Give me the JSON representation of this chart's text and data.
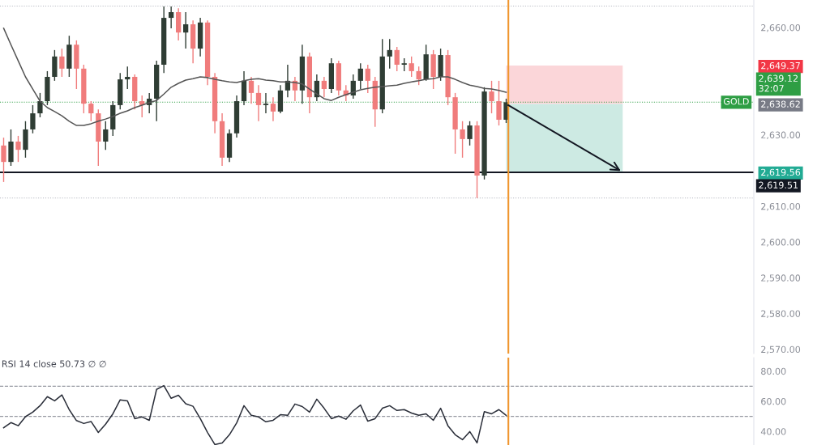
{
  "chart_data": [
    {
      "type": "candlestick",
      "categories": [
        null,
        null,
        null,
        null,
        null,
        null,
        null,
        null,
        null,
        null,
        null,
        null,
        null,
        null,
        null,
        null,
        null,
        null,
        null,
        null,
        null,
        null,
        null,
        null,
        null,
        null,
        null,
        null,
        null,
        null,
        null,
        null,
        null,
        null,
        null,
        null,
        null,
        null,
        null,
        null,
        null,
        null,
        null,
        null,
        null,
        null,
        null,
        null,
        null,
        null,
        null,
        null,
        null,
        null,
        null,
        null,
        null,
        null,
        null,
        null,
        null,
        null,
        null,
        null,
        null,
        null,
        null,
        null,
        null,
        null
      ],
      "ohlc": [
        [
          2627.0,
          2629.2,
          2616.8,
          2622.4
        ],
        [
          2622.4,
          2631.5,
          2621.3,
          2628.1
        ],
        [
          2628.1,
          2629.7,
          2622.4,
          2625.8
        ],
        [
          2625.8,
          2633.8,
          2623.6,
          2631.5
        ],
        [
          2631.5,
          2638.3,
          2630.4,
          2636.0
        ],
        [
          2636.0,
          2641.7,
          2634.9,
          2639.4
        ],
        [
          2639.4,
          2647.8,
          2638.3,
          2646.2
        ],
        [
          2646.2,
          2653.7,
          2645.1,
          2651.9
        ],
        [
          2651.9,
          2654.1,
          2646.2,
          2648.5
        ],
        [
          2648.5,
          2657.7,
          2646.2,
          2655.2
        ],
        [
          2655.2,
          2656.4,
          2642.8,
          2648.5
        ],
        [
          2648.5,
          2649.6,
          2636.0,
          2638.7
        ],
        [
          2638.7,
          2639.4,
          2633.8,
          2636.0
        ],
        [
          2636.0,
          2637.1,
          2621.3,
          2628.1
        ],
        [
          2628.1,
          2633.8,
          2625.8,
          2631.5
        ],
        [
          2631.5,
          2639.4,
          2629.7,
          2638.3
        ],
        [
          2638.3,
          2647.3,
          2637.1,
          2645.5
        ],
        [
          2645.5,
          2649.1,
          2642.8,
          2646.2
        ],
        [
          2646.2,
          2646.9,
          2637.1,
          2639.4
        ],
        [
          2639.4,
          2641.0,
          2634.9,
          2638.3
        ],
        [
          2638.3,
          2641.7,
          2636.0,
          2640.1
        ],
        [
          2640.1,
          2650.7,
          2633.8,
          2649.6
        ],
        [
          2649.6,
          2665.9,
          2647.3,
          2662.7
        ],
        [
          2662.7,
          2665.9,
          2659.8,
          2664.3
        ],
        [
          2664.3,
          2665.4,
          2656.4,
          2658.6
        ],
        [
          2658.6,
          2664.3,
          2654.1,
          2660.9
        ],
        [
          2660.9,
          2662.0,
          2650.0,
          2654.1
        ],
        [
          2654.1,
          2662.7,
          2651.9,
          2661.4
        ],
        [
          2661.4,
          2662.0,
          2643.9,
          2646.2
        ],
        [
          2646.2,
          2647.3,
          2630.4,
          2633.8
        ],
        [
          2633.8,
          2636.0,
          2621.3,
          2623.6
        ],
        [
          2623.6,
          2631.5,
          2622.4,
          2630.4
        ],
        [
          2630.4,
          2641.0,
          2629.2,
          2639.4
        ],
        [
          2639.4,
          2647.8,
          2638.3,
          2645.1
        ],
        [
          2645.1,
          2646.2,
          2638.7,
          2641.7
        ],
        [
          2641.7,
          2643.9,
          2633.8,
          2638.3
        ],
        [
          2638.3,
          2641.7,
          2636.0,
          2638.7
        ],
        [
          2638.7,
          2640.5,
          2633.8,
          2636.5
        ],
        [
          2636.5,
          2643.9,
          2636.0,
          2642.4
        ],
        [
          2642.4,
          2649.6,
          2640.5,
          2645.1
        ],
        [
          2645.1,
          2646.2,
          2639.4,
          2642.4
        ],
        [
          2642.4,
          2655.2,
          2638.7,
          2651.9
        ],
        [
          2651.9,
          2653.0,
          2636.0,
          2640.5
        ],
        [
          2640.5,
          2646.9,
          2639.4,
          2645.1
        ],
        [
          2645.1,
          2646.2,
          2640.5,
          2642.8
        ],
        [
          2642.8,
          2651.4,
          2641.7,
          2650.0
        ],
        [
          2650.0,
          2650.7,
          2641.0,
          2642.4
        ],
        [
          2642.4,
          2643.9,
          2639.4,
          2641.0
        ],
        [
          2641.0,
          2646.9,
          2640.1,
          2645.1
        ],
        [
          2645.1,
          2650.0,
          2642.8,
          2648.5
        ],
        [
          2648.5,
          2649.6,
          2641.7,
          2645.1
        ],
        [
          2645.1,
          2646.2,
          2632.2,
          2637.1
        ],
        [
          2637.1,
          2656.8,
          2636.0,
          2651.9
        ],
        [
          2651.9,
          2656.8,
          2648.5,
          2653.7
        ],
        [
          2653.7,
          2654.6,
          2647.8,
          2649.6
        ],
        [
          2649.6,
          2651.4,
          2647.8,
          2650.0
        ],
        [
          2650.0,
          2651.9,
          2646.2,
          2647.8
        ],
        [
          2647.8,
          2649.1,
          2643.9,
          2645.5
        ],
        [
          2645.5,
          2655.2,
          2645.1,
          2652.5
        ],
        [
          2652.5,
          2653.7,
          2642.8,
          2646.2
        ],
        [
          2646.2,
          2654.1,
          2645.1,
          2652.3
        ],
        [
          2652.3,
          2653.7,
          2638.3,
          2640.5
        ],
        [
          2640.5,
          2641.7,
          2624.7,
          2631.5
        ],
        [
          2631.5,
          2633.8,
          2623.6,
          2628.8
        ],
        [
          2628.8,
          2633.8,
          2627.0,
          2632.6
        ],
        [
          2632.6,
          2633.8,
          2612.3,
          2618.6
        ],
        [
          2618.6,
          2643.3,
          2617.5,
          2642.1
        ],
        [
          2642.1,
          2645.1,
          2636.0,
          2639.4
        ],
        [
          2639.4,
          2645.1,
          2632.6,
          2634.2
        ],
        [
          2634.2,
          2640.1,
          2633.3,
          2639.1
        ]
      ],
      "colors": [
        "#f07c7c",
        "#2f3d34",
        "#f07c7c",
        "#2f3d34",
        "#2f3d34",
        "#2f3d34",
        "#2f3d34",
        "#2f3d34",
        "#f07c7c",
        "#2f3d34",
        "#f07c7c",
        "#f07c7c",
        "#f07c7c",
        "#f07c7c",
        "#2f3d34",
        "#2f3d34",
        "#2f3d34",
        "#2f3d34",
        "#f07c7c",
        "#f07c7c",
        "#2f3d34",
        "#2f3d34",
        "#2f3d34",
        "#2f3d34",
        "#f07c7c",
        "#2f3d34",
        "#f07c7c",
        "#2f3d34",
        "#f07c7c",
        "#f07c7c",
        "#f07c7c",
        "#2f3d34",
        "#2f3d34",
        "#2f3d34",
        "#f07c7c",
        "#f07c7c",
        "#2f3d34",
        "#f07c7c",
        "#2f3d34",
        "#2f3d34",
        "#f07c7c",
        "#2f3d34",
        "#f07c7c",
        "#2f3d34",
        "#f07c7c",
        "#2f3d34",
        "#f07c7c",
        "#f07c7c",
        "#2f3d34",
        "#2f3d34",
        "#f07c7c",
        "#f07c7c",
        "#2f3d34",
        "#2f3d34",
        "#f07c7c",
        "#2f3d34",
        "#f07c7c",
        "#f07c7c",
        "#2f3d34",
        "#f07c7c",
        "#2f3d34",
        "#f07c7c",
        "#f07c7c",
        "#f07c7c",
        "#2f3d34",
        "#f07c7c",
        "#2f3d34",
        "#f07c7c",
        "#f07c7c",
        "#2f3d34"
      ],
      "series": [
        {
          "type": "line",
          "color": "#555555",
          "values": [
            2659.8,
            2655.2,
            2650.7,
            2646.2,
            2642.8,
            2639.4,
            2637.6,
            2636.5,
            2635.3,
            2633.8,
            2632.6,
            2632.6,
            2633.1,
            2633.8,
            2634.4,
            2635.1,
            2636.0,
            2636.7,
            2637.6,
            2638.3,
            2639.0,
            2639.6,
            2641.4,
            2643.3,
            2644.4,
            2645.3,
            2645.7,
            2646.2,
            2646.0,
            2645.5,
            2645.1,
            2644.8,
            2644.6,
            2645.1,
            2645.5,
            2645.7,
            2645.3,
            2645.1,
            2644.8,
            2644.8,
            2644.6,
            2644.2,
            2642.8,
            2641.4,
            2640.1,
            2639.6,
            2640.5,
            2641.2,
            2641.9,
            2642.6,
            2643.0,
            2643.3,
            2643.5,
            2643.7,
            2643.9,
            2644.4,
            2644.8,
            2645.1,
            2645.5,
            2645.7,
            2646.2,
            2646.2,
            2645.5,
            2644.6,
            2643.9,
            2643.5,
            2643.0,
            2642.8,
            2642.4,
            2641.9
          ]
        }
      ],
      "ylim": [
        2568.8,
        2667.7
      ],
      "yticks": [
        {
          "value": 2660,
          "label": "2,660.00"
        },
        {
          "value": 2649.37,
          "label": "2,649.37"
        },
        {
          "value": 2638.62,
          "label": "2,638.62"
        },
        {
          "value": 2630,
          "label": "2,630.00"
        },
        {
          "value": 2619.56,
          "label": "2,619.56"
        },
        {
          "value": 2610,
          "label": "2,610.00"
        },
        {
          "value": 2600,
          "label": "2,600.00"
        },
        {
          "value": 2590,
          "label": "2,590.00"
        },
        {
          "value": 2580,
          "label": "2,580.00"
        },
        {
          "value": 2570,
          "label": "2,570.00"
        }
      ],
      "ref_lines": [
        {
          "axis": "y",
          "value": 2666.0,
          "color": "#b2b5be",
          "line_style": "dotted"
        },
        {
          "axis": "y",
          "value": 2612.3,
          "color": "#b2b5be",
          "line_style": "dotted"
        },
        {
          "axis": "y",
          "value": 2639.12,
          "label": "2,639.12",
          "color": "#2e9e44",
          "line_style": "dotted"
        },
        {
          "axis": "y",
          "value": 2619.51,
          "label": "2,619.51",
          "color": "#131722",
          "line_style": "solid"
        }
      ],
      "annotations": [
        "GOLD",
        "32:07"
      ]
    },
    {
      "type": "line",
      "categories": [
        null,
        null,
        null,
        null,
        null,
        null,
        null,
        null,
        null,
        null,
        null,
        null,
        null,
        null,
        null,
        null,
        null,
        null,
        null,
        null,
        null,
        null,
        null,
        null,
        null,
        null,
        null,
        null,
        null,
        null,
        null,
        null,
        null,
        null,
        null,
        null,
        null,
        null,
        null,
        null,
        null,
        null,
        null,
        null,
        null,
        null,
        null,
        null,
        null,
        null,
        null,
        null,
        null,
        null,
        null,
        null,
        null,
        null,
        null,
        null,
        null,
        null,
        null,
        null,
        null,
        null,
        null,
        null,
        null,
        null
      ],
      "series": [
        {
          "color": "#2a2e39",
          "values": [
            42.5,
            45.9,
            43.8,
            49.8,
            52.8,
            57.1,
            63.1,
            60.3,
            64.2,
            54.5,
            47.2,
            45.3,
            46.6,
            39.3,
            44.8,
            51.7,
            61.0,
            60.3,
            48.5,
            49.6,
            47.4,
            67.9,
            70.4,
            62.0,
            64.0,
            58.4,
            56.7,
            48.5,
            39.3,
            31.3,
            32.4,
            37.8,
            45.7,
            57.1,
            50.7,
            49.6,
            46.4,
            47.4,
            51.1,
            50.7,
            58.2,
            56.5,
            52.8,
            61.4,
            55.4,
            48.5,
            50.2,
            48.1,
            53.7,
            57.5,
            46.8,
            48.5,
            55.4,
            57.1,
            53.9,
            54.5,
            52.2,
            50.7,
            51.7,
            47.4,
            55.4,
            43.8,
            37.8,
            34.5,
            39.9,
            32.4,
            53.2,
            51.7,
            54.5,
            50.7
          ]
        }
      ],
      "ylim": [
        31,
        89
      ],
      "yticks": [
        {
          "value": 80,
          "label": "80.00"
        },
        {
          "value": 60,
          "label": "60.00"
        },
        {
          "value": 40,
          "label": "40.00"
        }
      ],
      "ref_lines": [
        {
          "axis": "y",
          "value": 70,
          "color": "#9598a1",
          "line_style": "dashed"
        },
        {
          "axis": "y",
          "value": 50,
          "color": "#9598a1",
          "line_style": "dashed"
        }
      ],
      "annotations": [
        "RSI 14 close 50.73 ∅ ∅"
      ]
    }
  ]
}
